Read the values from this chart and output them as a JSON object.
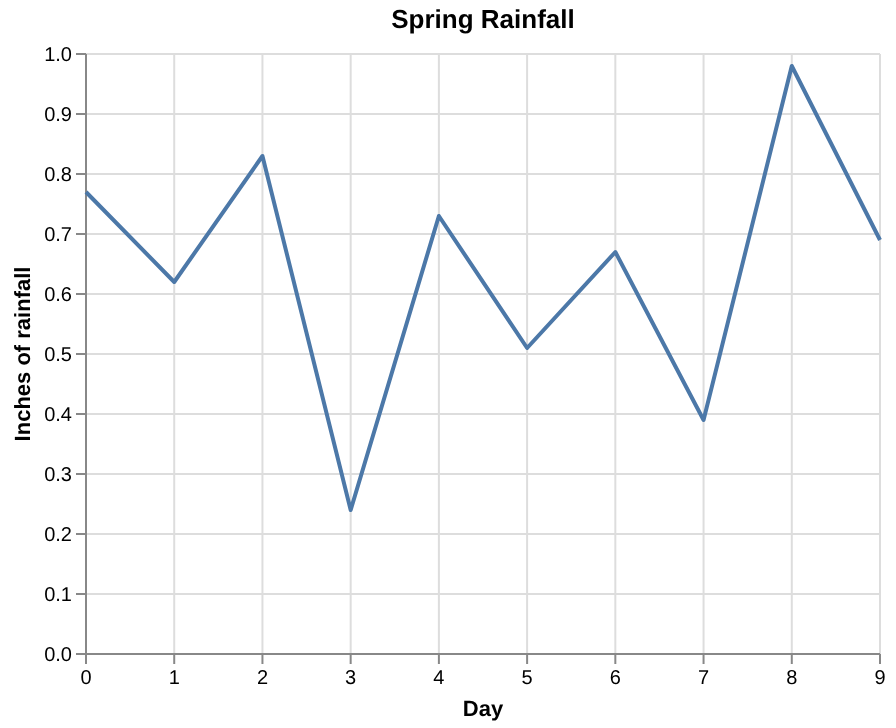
{
  "chart_data": {
    "type": "line",
    "title": "Spring Rainfall",
    "xlabel": "Day",
    "ylabel": "Inches of rainfall",
    "x": [
      0,
      1,
      2,
      3,
      4,
      5,
      6,
      7,
      8,
      9
    ],
    "series": [
      {
        "color": "#4c78a8",
        "values": [
          0.77,
          0.62,
          0.83,
          0.24,
          0.73,
          0.51,
          0.67,
          0.39,
          0.98,
          0.69
        ]
      }
    ],
    "xlim": [
      0,
      9
    ],
    "xticks": [
      0,
      1,
      2,
      3,
      4,
      5,
      6,
      7,
      8,
      9
    ],
    "ylim": [
      0,
      1
    ],
    "yticks": [
      {
        "value": 0,
        "label": "0.0"
      },
      0.1,
      0.2,
      0.3,
      0.4,
      0.5,
      0.6,
      0.7,
      0.8,
      0.9,
      {
        "value": 1,
        "label": "1.0"
      }
    ],
    "grid": true,
    "marker": "none",
    "line_style": "solid"
  }
}
